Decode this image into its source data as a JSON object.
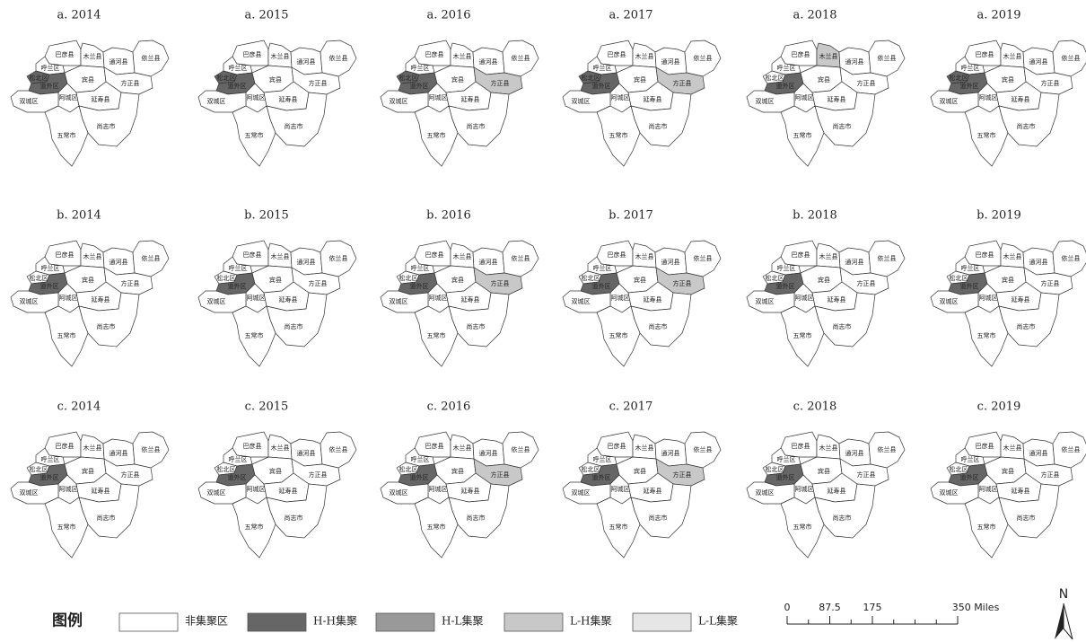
{
  "panels": [
    {
      "title": "a. 2014",
      "clusters": [
        {
          "district": "松北区",
          "class": "H-H集聚"
        },
        {
          "district": "道外区",
          "class": "H-H集聚"
        }
      ]
    },
    {
      "title": "a. 2015",
      "clusters": [
        {
          "district": "松北区",
          "class": "H-H集聚"
        },
        {
          "district": "道外区",
          "class": "H-H集聚"
        }
      ]
    },
    {
      "title": "a. 2016",
      "clusters": [
        {
          "district": "松北区",
          "class": "H-H集聚"
        },
        {
          "district": "道外区",
          "class": "H-H集聚"
        },
        {
          "district": "方正县",
          "class": "L-H集聚"
        }
      ]
    },
    {
      "title": "a. 2017",
      "clusters": [
        {
          "district": "松北区",
          "class": "H-H集聚"
        },
        {
          "district": "道外区",
          "class": "H-H集聚"
        },
        {
          "district": "方正县",
          "class": "L-H集聚"
        }
      ]
    },
    {
      "title": "a. 2018",
      "clusters": [
        {
          "district": "道外区",
          "class": "H-H集聚"
        },
        {
          "district": "木兰县",
          "class": "L-H集聚"
        }
      ]
    },
    {
      "title": "a. 2019",
      "clusters": [
        {
          "district": "松北区",
          "class": "H-H集聚"
        },
        {
          "district": "道外区",
          "class": "H-H集聚"
        }
      ]
    },
    {
      "title": "b. 2014",
      "clusters": [
        {
          "district": "道外区",
          "class": "H-H集聚"
        }
      ]
    },
    {
      "title": "b. 2015",
      "clusters": [
        {
          "district": "道外区",
          "class": "H-H集聚"
        }
      ]
    },
    {
      "title": "b. 2016",
      "clusters": [
        {
          "district": "道外区",
          "class": "H-H集聚"
        },
        {
          "district": "方正县",
          "class": "L-H集聚"
        }
      ]
    },
    {
      "title": "b. 2017",
      "clusters": [
        {
          "district": "道外区",
          "class": "H-H集聚"
        },
        {
          "district": "方正县",
          "class": "L-H集聚"
        }
      ]
    },
    {
      "title": "b. 2018",
      "clusters": [
        {
          "district": "道外区",
          "class": "H-H集聚"
        }
      ]
    },
    {
      "title": "b. 2019",
      "clusters": [
        {
          "district": "道外区",
          "class": "H-H集聚"
        }
      ]
    },
    {
      "title": "c. 2014",
      "clusters": [
        {
          "district": "道外区",
          "class": "H-H集聚"
        }
      ]
    },
    {
      "title": "c. 2015",
      "clusters": [
        {
          "district": "道外区",
          "class": "H-H集聚"
        }
      ]
    },
    {
      "title": "c. 2016",
      "clusters": [
        {
          "district": "道外区",
          "class": "H-H集聚"
        },
        {
          "district": "方正县",
          "class": "L-H集聚"
        }
      ]
    },
    {
      "title": "c. 2017",
      "clusters": [
        {
          "district": "道外区",
          "class": "H-H集聚"
        },
        {
          "district": "方正县",
          "class": "L-H集聚"
        }
      ]
    },
    {
      "title": "c. 2018",
      "clusters": [
        {
          "district": "道外区",
          "class": "H-H集聚"
        }
      ]
    },
    {
      "title": "c. 2019",
      "clusters": [
        {
          "district": "道外区",
          "class": "H-H集聚"
        }
      ]
    }
  ],
  "districts": [
    "巴彦县",
    "木兰县",
    "通河县",
    "依兰县",
    "呼兰区",
    "松北区",
    "道外区",
    "宾县",
    "方正县",
    "阿城区",
    "延寿县",
    "双城区",
    "尚志市",
    "五常市"
  ],
  "legend": {
    "title": "图例",
    "items": [
      {
        "label": "非集聚区",
        "color": "#ffffff"
      },
      {
        "label": "H-H集聚",
        "color": "#666666"
      },
      {
        "label": "H-L集聚",
        "color": "#999999"
      },
      {
        "label": "L-H集聚",
        "color": "#c8c8c8"
      },
      {
        "label": "L-L集聚",
        "color": "#e6e6e6"
      }
    ]
  },
  "scale_bar": {
    "ticks": [
      0,
      87.5,
      175,
      {
        "value": 350,
        "label": "350 Miles"
      }
    ]
  },
  "north": "N"
}
